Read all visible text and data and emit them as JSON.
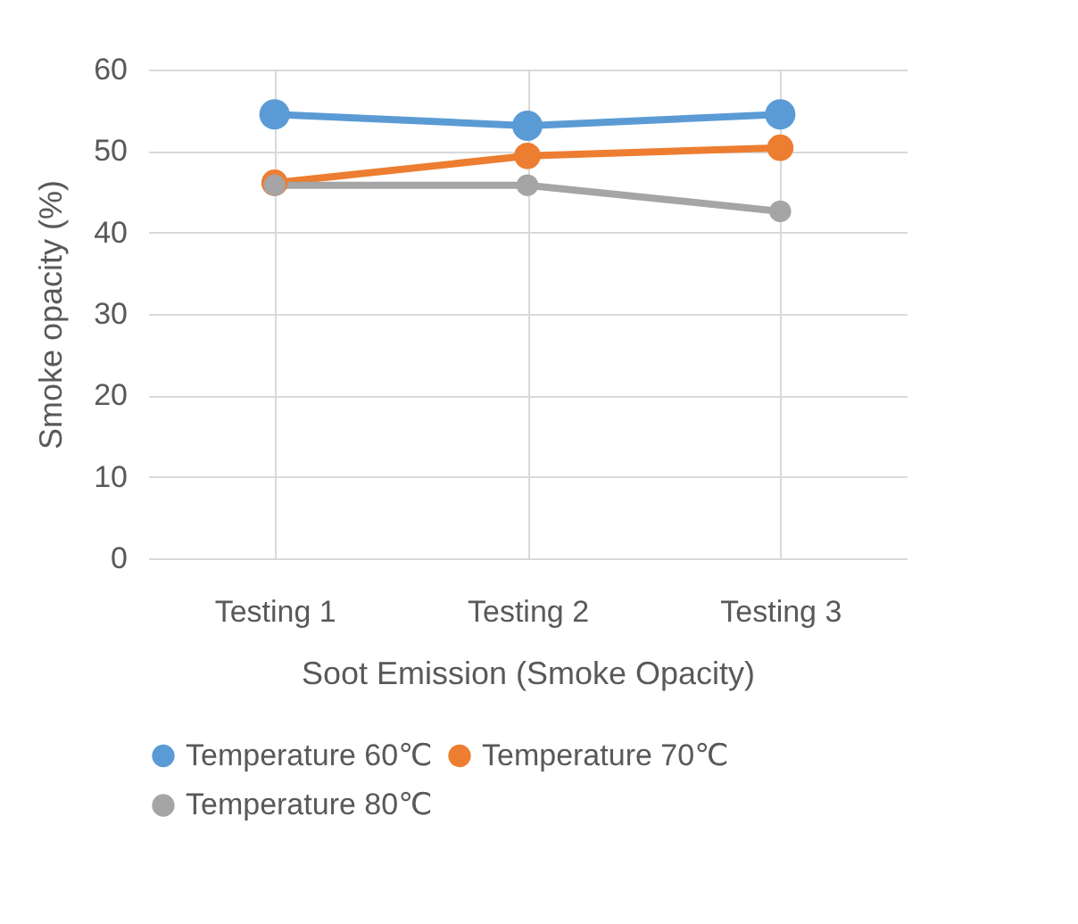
{
  "chart_data": {
    "type": "line",
    "xlabel": "Soot Emission (Smoke Opacity)",
    "ylabel": "Smoke opacity (%)",
    "categories": [
      "Testing 1",
      "Testing 2",
      "Testing 3"
    ],
    "series": [
      {
        "name": "Temperature 60℃",
        "color": "#5b9bd5",
        "values": [
          54.5,
          53.1,
          54.5
        ]
      },
      {
        "name": "Temperature 70℃",
        "color": "#ed7d31",
        "values": [
          46.1,
          49.4,
          50.4
        ]
      },
      {
        "name": "Temperature 80℃",
        "color": "#a5a5a5",
        "values": [
          45.8,
          45.8,
          42.6
        ]
      }
    ],
    "ylim": [
      0,
      60
    ],
    "yticks": [
      0,
      10,
      20,
      30,
      40,
      50,
      60
    ],
    "grid": true,
    "legend": "bottom",
    "marker": "circle",
    "line_style": "solid"
  }
}
